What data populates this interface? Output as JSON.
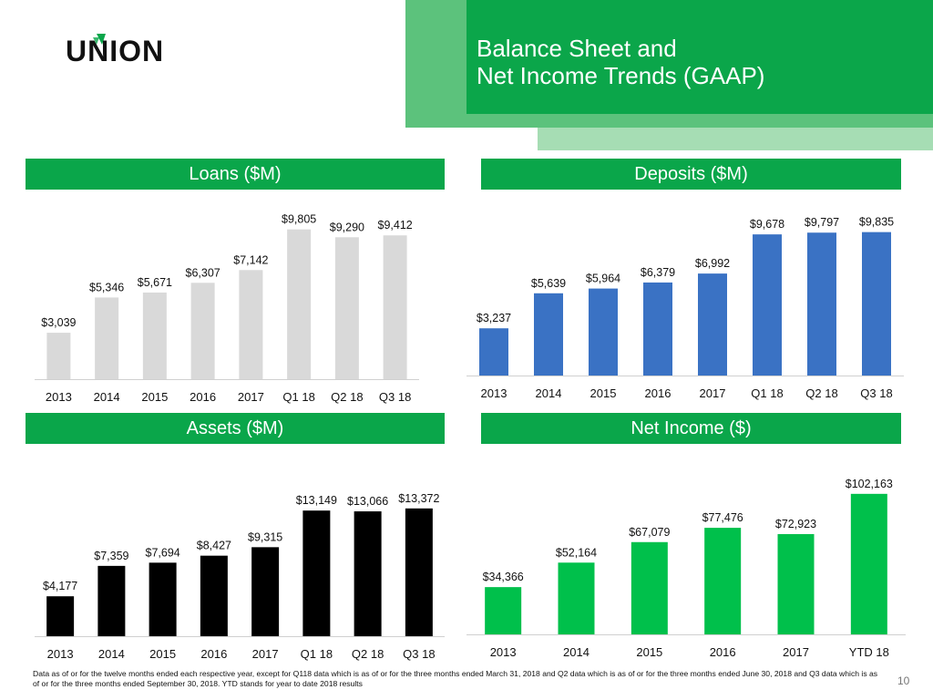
{
  "header": {
    "logo_text": "UNION",
    "title_line1": "Balance Sheet and",
    "title_line2": "Net Income Trends (GAAP)"
  },
  "colors": {
    "green": "#0aa64a",
    "loans_bar": "#d9d9d9",
    "deposits_bar": "#3a72c4",
    "assets_bar": "#000000",
    "netincome_bar": "#00c04b"
  },
  "chart_data": [
    {
      "type": "bar",
      "title": "Loans ($M)",
      "categories": [
        "2013",
        "2014",
        "2015",
        "2016",
        "2017",
        "Q1 18",
        "Q2 18",
        "Q3 18"
      ],
      "values": [
        3039,
        5346,
        5671,
        6307,
        7142,
        9805,
        9290,
        9412
      ],
      "labels": [
        "$3,039",
        "$5,346",
        "$5,671",
        "$6,307",
        "$7,142",
        "$9,805",
        "$9,290",
        "$9,412"
      ],
      "ylim": [
        0,
        10500
      ]
    },
    {
      "type": "bar",
      "title": "Deposits ($M)",
      "categories": [
        "2013",
        "2014",
        "2015",
        "2016",
        "2017",
        "Q1 18",
        "Q2 18",
        "Q3 18"
      ],
      "values": [
        3237,
        5639,
        5964,
        6379,
        6992,
        9678,
        9797,
        9835
      ],
      "labels": [
        "$3,237",
        "$5,639",
        "$5,964",
        "$6,379",
        "$6,992",
        "$9,678",
        "$9,797",
        "$9,835"
      ],
      "ylim": [
        0,
        10500
      ]
    },
    {
      "type": "bar",
      "title": "Assets ($M)",
      "categories": [
        "2013",
        "2014",
        "2015",
        "2016",
        "2017",
        "Q1 18",
        "Q2 18",
        "Q3 18"
      ],
      "values": [
        4177,
        7359,
        7694,
        8427,
        9315,
        13149,
        13066,
        13372
      ],
      "labels": [
        "$4,177",
        "$7,359",
        "$7,694",
        "$8,427",
        "$9,315",
        "$13,149",
        "$13,066",
        "$13,372"
      ],
      "ylim": [
        0,
        14500
      ]
    },
    {
      "type": "bar",
      "title": "Net Income ($)",
      "categories": [
        "2013",
        "2014",
        "2015",
        "2016",
        "2017",
        "YTD 18"
      ],
      "values": [
        34366,
        52164,
        67079,
        77476,
        72923,
        102163
      ],
      "labels": [
        "$34,366",
        "$52,164",
        "$67,079",
        "$77,476",
        "$72,923",
        "$102,163"
      ],
      "ylim": [
        0,
        110000
      ]
    }
  ],
  "footnote": "Data as of or for the twelve months ended each respective year, except for Q118 data which is as of or for the three months ended March 31, 2018 and Q2 data which is as of or for the three months ended June 30, 2018 and Q3 data which is as of or for the three months ended September 30, 2018.  YTD stands for year to date 2018 results",
  "page_number": "10"
}
